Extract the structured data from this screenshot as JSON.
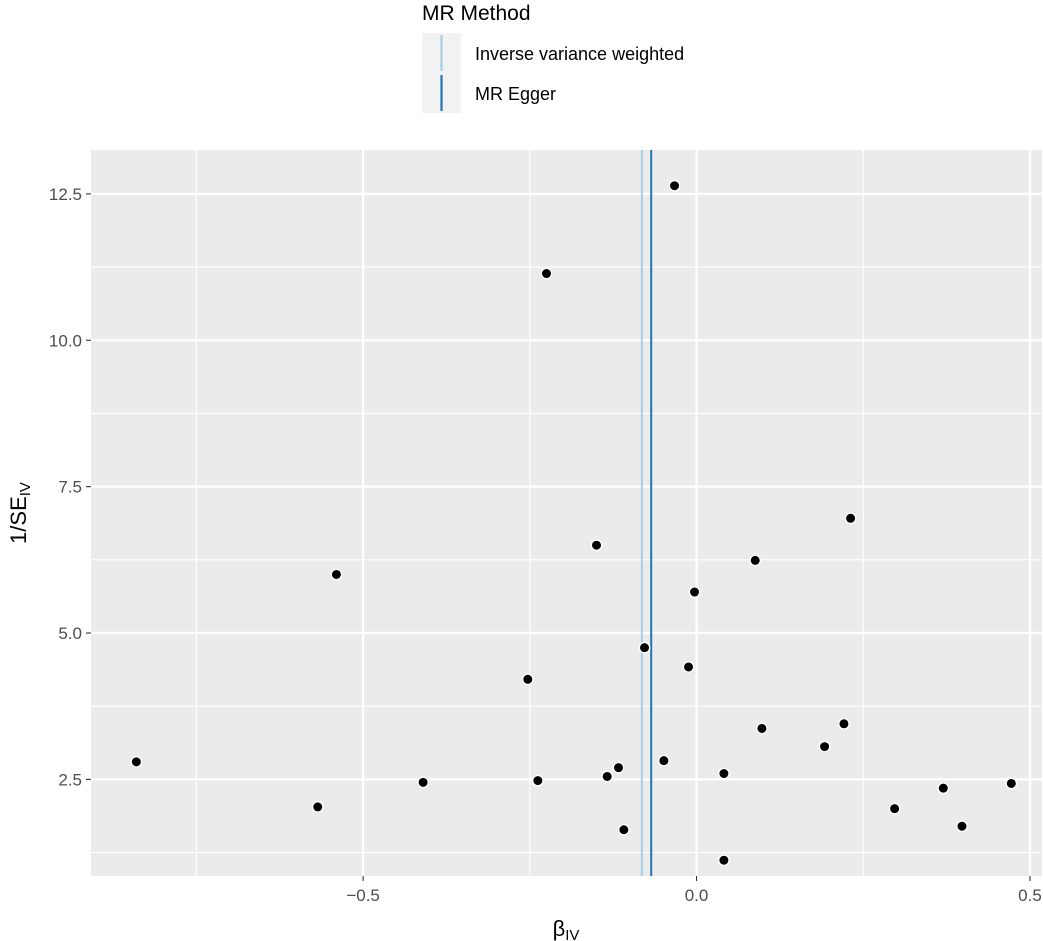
{
  "chart_data": {
    "type": "scatter",
    "title": "",
    "xlabel": {
      "main": "β",
      "sub": "IV"
    },
    "ylabel": {
      "main": "1/SE",
      "sub": "IV"
    },
    "xlim": [
      -0.908,
      0.518
    ],
    "ylim": [
      0.85,
      13.25
    ],
    "x_ticks": [
      -0.5,
      0.0,
      0.5
    ],
    "x_tick_labels": [
      "−0.5",
      "0.0",
      "0.5"
    ],
    "y_ticks": [
      2.5,
      5.0,
      7.5,
      10.0,
      12.5
    ],
    "y_tick_labels": [
      "2.5",
      "5.0",
      "7.5",
      "10.0",
      "12.5"
    ],
    "grid": true,
    "panel_background": "#ebebeb",
    "point_color": "#000000",
    "points": [
      {
        "x": -0.84,
        "y": 2.8
      },
      {
        "x": -0.568,
        "y": 2.03
      },
      {
        "x": -0.54,
        "y": 6.0
      },
      {
        "x": -0.41,
        "y": 2.45
      },
      {
        "x": -0.253,
        "y": 4.21
      },
      {
        "x": -0.238,
        "y": 2.48
      },
      {
        "x": -0.225,
        "y": 11.14
      },
      {
        "x": -0.15,
        "y": 6.5
      },
      {
        "x": -0.134,
        "y": 2.55
      },
      {
        "x": -0.117,
        "y": 2.7
      },
      {
        "x": -0.109,
        "y": 1.64
      },
      {
        "x": -0.078,
        "y": 4.75
      },
      {
        "x": -0.049,
        "y": 2.82
      },
      {
        "x": -0.033,
        "y": 12.64
      },
      {
        "x": -0.012,
        "y": 4.42
      },
      {
        "x": -0.003,
        "y": 5.7
      },
      {
        "x": 0.041,
        "y": 2.6
      },
      {
        "x": 0.041,
        "y": 1.12
      },
      {
        "x": 0.088,
        "y": 6.24
      },
      {
        "x": 0.098,
        "y": 3.37
      },
      {
        "x": 0.192,
        "y": 3.06
      },
      {
        "x": 0.221,
        "y": 3.45
      },
      {
        "x": 0.231,
        "y": 6.96
      },
      {
        "x": 0.297,
        "y": 2.0
      },
      {
        "x": 0.37,
        "y": 2.35
      },
      {
        "x": 0.398,
        "y": 1.7
      },
      {
        "x": 0.472,
        "y": 2.43
      }
    ],
    "reference_lines": [
      {
        "name": "Inverse variance weighted",
        "x": -0.082,
        "color": "#a6cee3"
      },
      {
        "name": "MR Egger",
        "x": -0.068,
        "color": "#1f78b4"
      }
    ],
    "legend": {
      "title": "MR Method",
      "placement": "top",
      "entries": [
        "Inverse variance weighted",
        "MR Egger"
      ]
    }
  }
}
